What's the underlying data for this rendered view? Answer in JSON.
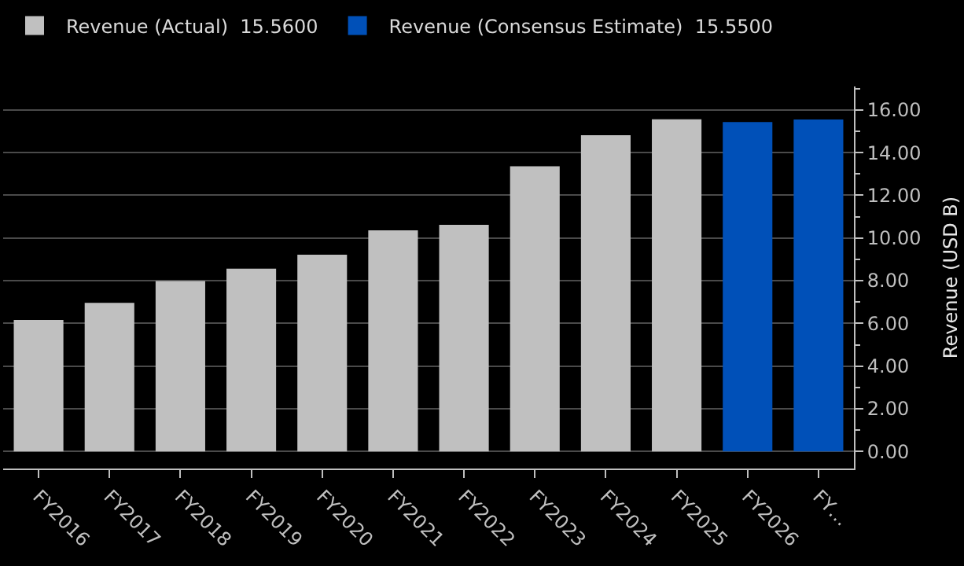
{
  "chart_data": {
    "type": "bar",
    "ylabel": "Revenue (USD B)",
    "categories": [
      "FY2016",
      "FY2017",
      "FY2018",
      "FY2019",
      "FY2020",
      "FY2021",
      "FY2022",
      "FY2023",
      "FY2024",
      "FY2025",
      "FY2026",
      "FY…"
    ],
    "series": [
      {
        "name": "Revenue (Actual)  15.5600",
        "color": "#c0c0c0",
        "values": [
          6.16,
          6.96,
          7.98,
          8.56,
          9.22,
          10.36,
          10.62,
          13.36,
          14.82,
          15.56,
          null,
          null
        ]
      },
      {
        "name": "Revenue (Consensus Estimate)  15.5500",
        "color": "#0050b8",
        "values": [
          null,
          null,
          null,
          null,
          null,
          null,
          null,
          null,
          null,
          null,
          15.43,
          15.55
        ]
      }
    ],
    "ylim": [
      -0.8,
      17.1
    ],
    "yticks": [
      {
        "value": 0,
        "label": "0.00"
      },
      {
        "value": 1,
        "label": null
      },
      {
        "value": 2,
        "label": "2.00"
      },
      {
        "value": 3,
        "label": null
      },
      {
        "value": 4,
        "label": "4.00"
      },
      {
        "value": 5,
        "label": null
      },
      {
        "value": 6,
        "label": "6.00"
      },
      {
        "value": 7,
        "label": null
      },
      {
        "value": 8,
        "label": "8.00"
      },
      {
        "value": 9,
        "label": null
      },
      {
        "value": 10,
        "label": "10.00"
      },
      {
        "value": 11,
        "label": null
      },
      {
        "value": 12,
        "label": "12.00"
      },
      {
        "value": 13,
        "label": null
      },
      {
        "value": 14,
        "label": "14.00"
      },
      {
        "value": 15,
        "label": null
      },
      {
        "value": 16,
        "label": "16.00"
      },
      {
        "value": 17,
        "label": null
      }
    ],
    "grid": "y",
    "legend": "top left"
  }
}
